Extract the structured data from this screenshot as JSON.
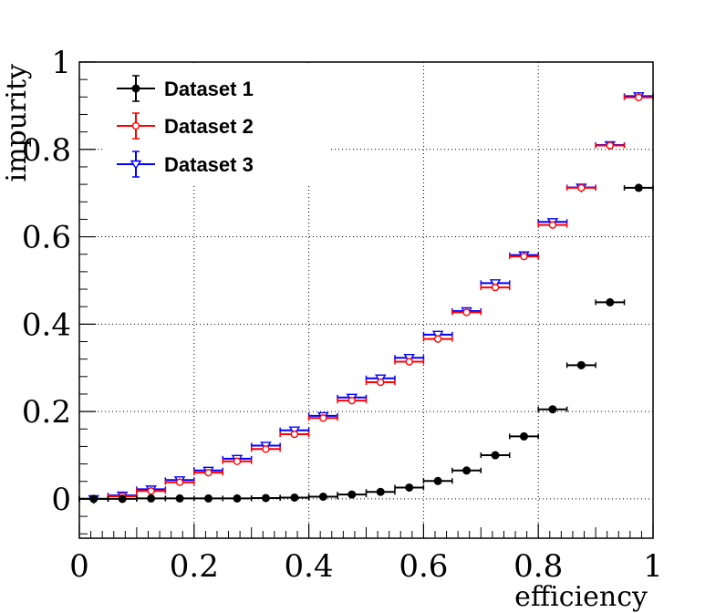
{
  "chart_data": {
    "type": "scatter",
    "title": "",
    "xlabel": "efficiency",
    "ylabel": "impurity",
    "xlim": [
      0,
      1
    ],
    "ylim": [
      -0.09,
      1
    ],
    "grid": true,
    "x_ticks": [
      0,
      0.2,
      0.4,
      0.6,
      0.8,
      1
    ],
    "x_tick_labels": [
      "0",
      "0.2",
      "0.4",
      "0.6",
      "0.8",
      "1"
    ],
    "y_ticks": [
      0,
      0.2,
      0.4,
      0.6,
      0.8,
      1
    ],
    "y_tick_labels": [
      "0",
      "0.2",
      "0.4",
      "0.6",
      "0.8",
      "1"
    ],
    "x_error": 0.025,
    "x": [
      0.025,
      0.075,
      0.125,
      0.175,
      0.225,
      0.275,
      0.325,
      0.375,
      0.425,
      0.475,
      0.525,
      0.575,
      0.625,
      0.675,
      0.725,
      0.775,
      0.825,
      0.875,
      0.925,
      0.975
    ],
    "legend_position": "top-left",
    "series": [
      {
        "name": "Dataset 1",
        "color": "#000000",
        "marker": "filled-circle",
        "values": [
          0.0,
          0.0,
          0.001,
          0.001,
          0.001,
          0.001,
          0.002,
          0.003,
          0.005,
          0.01,
          0.016,
          0.026,
          0.041,
          0.065,
          0.1,
          0.143,
          0.205,
          0.306,
          0.45,
          0.712
        ]
      },
      {
        "name": "Dataset 2",
        "color": "#ff0000",
        "marker": "open-circle",
        "values": [
          0.0,
          0.006,
          0.018,
          0.038,
          0.06,
          0.086,
          0.114,
          0.148,
          0.185,
          0.225,
          0.267,
          0.314,
          0.366,
          0.427,
          0.484,
          0.555,
          0.627,
          0.712,
          0.809,
          0.919
        ]
      },
      {
        "name": "Dataset 3",
        "color": "#0000ff",
        "marker": "open-triangle-down",
        "values": [
          0.0,
          0.008,
          0.022,
          0.043,
          0.065,
          0.092,
          0.122,
          0.157,
          0.19,
          0.232,
          0.276,
          0.323,
          0.376,
          0.43,
          0.494,
          0.558,
          0.634,
          0.713,
          0.81,
          0.922
        ]
      }
    ]
  }
}
